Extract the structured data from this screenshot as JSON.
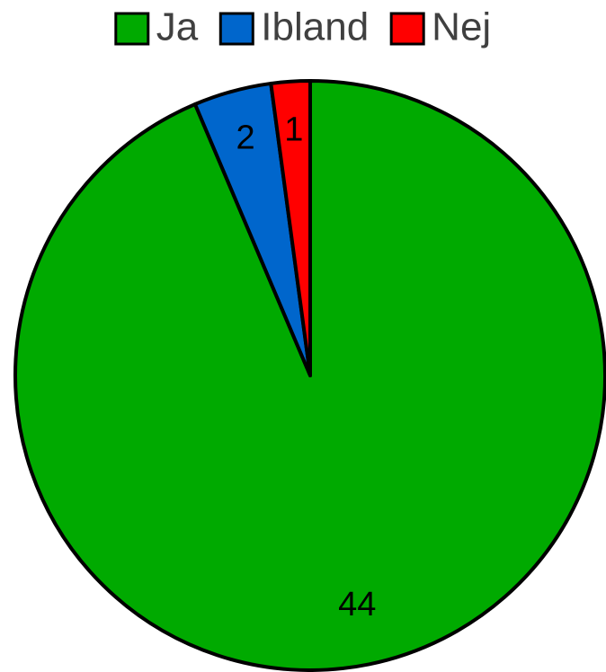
{
  "chart_data": {
    "type": "pie",
    "categories": [
      "Ja",
      "Ibland",
      "Nej"
    ],
    "values": [
      44,
      2,
      1
    ],
    "colors": [
      "#00aa00",
      "#0066cc",
      "#ff0000"
    ],
    "legend": "top"
  }
}
